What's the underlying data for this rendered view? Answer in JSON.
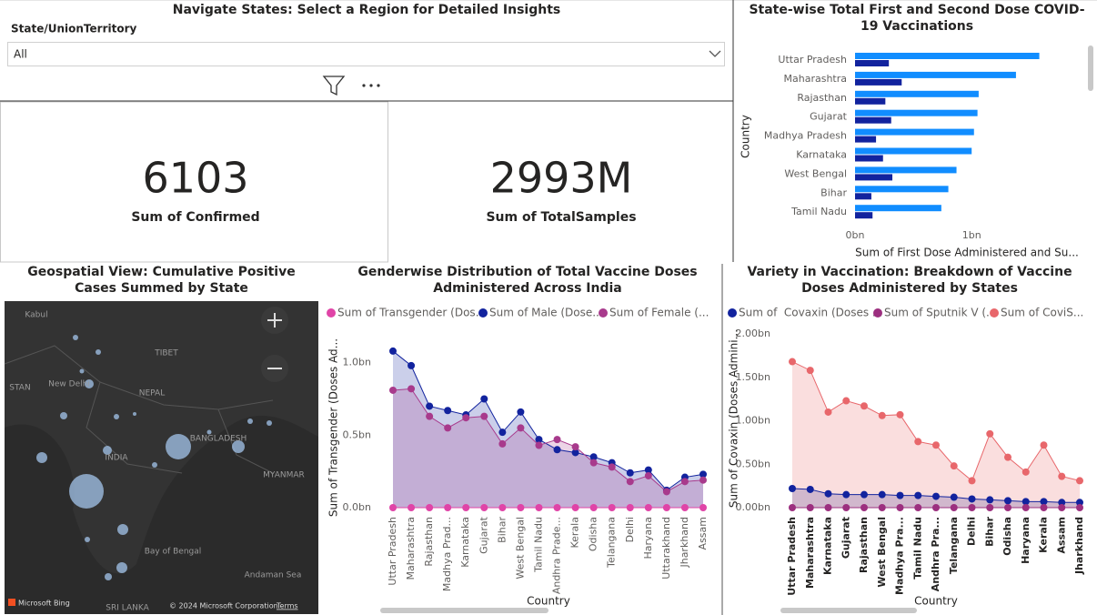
{
  "slicer": {
    "title": "Navigate States: Select a Region for Detailed Insights",
    "label": "State/UnionTerritory",
    "value": "All"
  },
  "cards": [
    {
      "value": 6103,
      "label": "Sum of Confirmed"
    },
    {
      "value": "2993M",
      "label": "Sum of TotalSamples"
    }
  ],
  "map": {
    "title": "Geospatial View: Cumulative Positive Cases Summed by State",
    "labels": [
      "Kabul",
      "TIBET",
      "STAN",
      "New Delhi",
      "NEPAL",
      "INDIA",
      "BANGLADESH",
      "MYANMAR",
      "Bay of Bengal",
      "Andaman Sea",
      "SRI LANKA"
    ],
    "brand": "Microsoft Bing",
    "copyright": "© 2024 Microsoft Corporation",
    "terms": "Terms"
  },
  "chart_data": [
    {
      "type": "hbar",
      "title": "State-wise Total First and Second Dose COVID-19 Vaccinations",
      "y_label": "Country",
      "x_label": "Sum of First Dose Administered and Su...",
      "categories": [
        "Uttar Pradesh",
        "Maharashtra",
        "Rajasthan",
        "Gujarat",
        "Madhya Pradesh",
        "Karnataka",
        "West Bengal",
        "Bihar",
        "Tamil Nadu"
      ],
      "series": [
        {
          "color": "#118dff",
          "values": [
            1580000000,
            1380000000,
            1060000000,
            1050000000,
            1020000000,
            1000000000,
            870000000,
            800000000,
            740000000
          ]
        },
        {
          "color": "#12239e",
          "values": [
            290000000,
            400000000,
            260000000,
            310000000,
            180000000,
            240000000,
            320000000,
            140000000,
            150000000
          ]
        }
      ],
      "xlim": [
        0,
        1950000000
      ],
      "xticks": [
        {
          "value": 0,
          "label": "0bn"
        },
        {
          "value": 1000000000,
          "label": "1bn"
        }
      ],
      "grid": false
    },
    {
      "type": "line",
      "title": "Genderwise Distribution of Total Vaccine Doses Administered Across India",
      "y_label": "Sum of Transgender (Doses Ad...",
      "x_label": "Country",
      "area": true,
      "categories": [
        "Uttar Pradesh",
        "Maharashtra",
        "Rajasthan",
        "Madhya Prad...",
        "Karnataka",
        "Gujarat",
        "Bihar",
        "West Bengal",
        "Tamil Nadu",
        "Andhra Prade...",
        "Kerala",
        "Odisha",
        "Telangana",
        "Delhi",
        "Haryana",
        "Uttarakhand",
        "Jharkhand",
        "Assam"
      ],
      "series": [
        {
          "name": "Sum of Transgender (Dos...",
          "color": "#e044a7",
          "values": [
            0,
            0,
            0,
            0,
            0,
            0,
            0,
            0,
            0,
            0,
            0,
            0,
            0,
            0,
            0,
            0,
            0,
            0
          ]
        },
        {
          "name": "Sum of Male (Dose...",
          "color": "#12239e",
          "values": [
            1080000000,
            980000000,
            700000000,
            670000000,
            640000000,
            750000000,
            520000000,
            660000000,
            470000000,
            400000000,
            380000000,
            350000000,
            310000000,
            240000000,
            260000000,
            120000000,
            210000000,
            230000000
          ]
        },
        {
          "name": "Sum of Female (...",
          "color": "#a83a8c",
          "values": [
            810000000,
            820000000,
            630000000,
            550000000,
            620000000,
            630000000,
            440000000,
            550000000,
            430000000,
            470000000,
            420000000,
            310000000,
            280000000,
            180000000,
            220000000,
            110000000,
            180000000,
            190000000
          ]
        }
      ],
      "ylim": [
        0,
        1180000000
      ],
      "yticks": [
        {
          "value": 0,
          "label": "0.0bn"
        },
        {
          "value": 500000000,
          "label": "0.5bn"
        },
        {
          "value": 1000000000,
          "label": "1.0bn"
        }
      ],
      "grid": false
    },
    {
      "type": "line",
      "title": "Variety in Vaccination: Breakdown of Vaccine Doses Administered by States",
      "y_label": "Sum of Covaxin (Doses Admini...",
      "x_label": "Country",
      "area": true,
      "categories": [
        "Uttar Pradesh",
        "Maharashtra",
        "Karnataka",
        "Gujarat",
        "Rajasthan",
        "West Bengal",
        "Madhya Pra...",
        "Tamil Nadu",
        "Andhra Pra...",
        "Telangana",
        "Delhi",
        "Bihar",
        "Odisha",
        "Haryana",
        "Kerala",
        "Assam",
        "Jharkhand"
      ],
      "series": [
        {
          "name": "Sum of  Covaxin (Doses ...",
          "color": "#12239e",
          "values": [
            220000000,
            210000000,
            160000000,
            150000000,
            150000000,
            150000000,
            140000000,
            140000000,
            130000000,
            120000000,
            100000000,
            90000000,
            80000000,
            70000000,
            70000000,
            60000000,
            60000000
          ]
        },
        {
          "name": "Sum of Sputnik V (...",
          "color": "#9c2f7f",
          "values": [
            0,
            0,
            0,
            0,
            0,
            0,
            0,
            0,
            0,
            0,
            0,
            0,
            0,
            0,
            0,
            0,
            0
          ]
        },
        {
          "name": "Sum of CoviS...",
          "color": "#e8676b",
          "values": [
            1680000000,
            1580000000,
            1100000000,
            1230000000,
            1170000000,
            1060000000,
            1070000000,
            760000000,
            720000000,
            480000000,
            310000000,
            850000000,
            580000000,
            410000000,
            720000000,
            360000000,
            310000000
          ]
        }
      ],
      "ylim": [
        0,
        2000000000
      ],
      "yticks": [
        {
          "value": 0,
          "label": "0.00bn"
        },
        {
          "value": 500000000,
          "label": "0.50bn"
        },
        {
          "value": 1000000000,
          "label": "1.00bn"
        },
        {
          "value": 1500000000,
          "label": "1.50bn"
        },
        {
          "value": 2000000000,
          "label": "2.00bn"
        }
      ],
      "grid": false
    }
  ]
}
